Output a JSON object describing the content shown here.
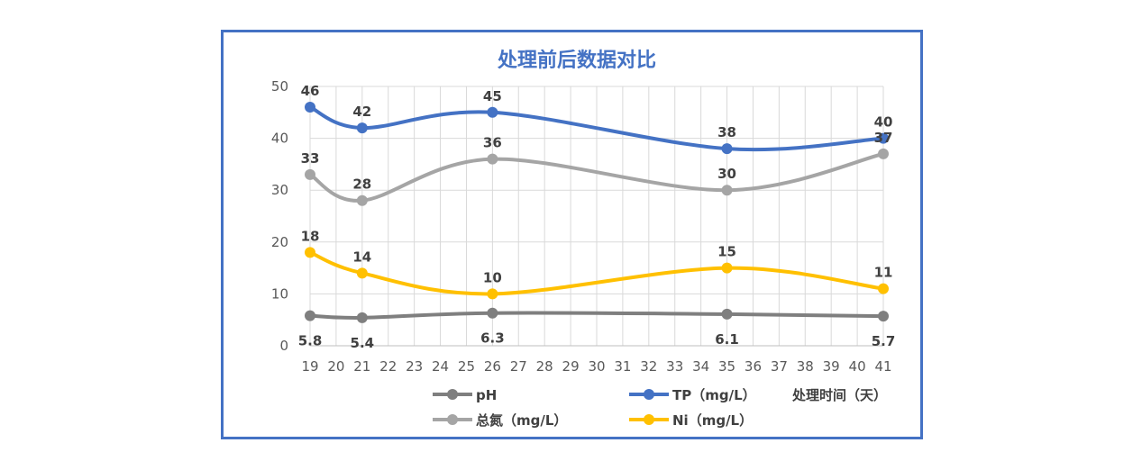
{
  "chart_data": {
    "type": "line",
    "title": "处理前后数据对比",
    "xlabel": "处理时间（天）",
    "ylabel": "",
    "ylim": [
      0,
      50
    ],
    "yticks": [
      0,
      10,
      20,
      30,
      40,
      50
    ],
    "categories": [
      "19",
      "20",
      "21",
      "22",
      "23",
      "24",
      "25",
      "26",
      "27",
      "28",
      "29",
      "30",
      "31",
      "32",
      "33",
      "34",
      "35",
      "36",
      "37",
      "38",
      "39",
      "40",
      "41"
    ],
    "grid": true,
    "smooth": true,
    "legend_position": "bottom",
    "series": [
      {
        "name": "pH",
        "color": "#7F7F7F",
        "x": [
          "19",
          "21",
          "26",
          "35",
          "41"
        ],
        "values": [
          5.8,
          5.4,
          6.3,
          6.1,
          5.7
        ],
        "labels": [
          "5.8",
          "5.4",
          "6.3",
          "6.1",
          "5.7"
        ],
        "label_position": "below"
      },
      {
        "name": "TP（mg/L）",
        "color": "#4472C4",
        "x": [
          "19",
          "21",
          "26",
          "35",
          "41"
        ],
        "values": [
          46,
          42,
          45,
          38,
          40
        ],
        "labels": [
          "46",
          "42",
          "45",
          "38",
          "40"
        ],
        "label_position": "above"
      },
      {
        "name": "总氮（mg/L）",
        "color": "#A5A5A5",
        "x": [
          "19",
          "21",
          "26",
          "35",
          "41"
        ],
        "values": [
          33,
          28,
          36,
          30,
          37
        ],
        "labels": [
          "33",
          "28",
          "36",
          "30",
          "37"
        ],
        "label_position": "above"
      },
      {
        "name": "Ni（mg/L）",
        "color": "#FFC000",
        "x": [
          "19",
          "21",
          "26",
          "35",
          "41"
        ],
        "values": [
          18,
          14,
          10,
          15,
          11
        ],
        "labels": [
          "18",
          "14",
          "10",
          "15",
          "11"
        ],
        "label_position": "above"
      }
    ]
  }
}
